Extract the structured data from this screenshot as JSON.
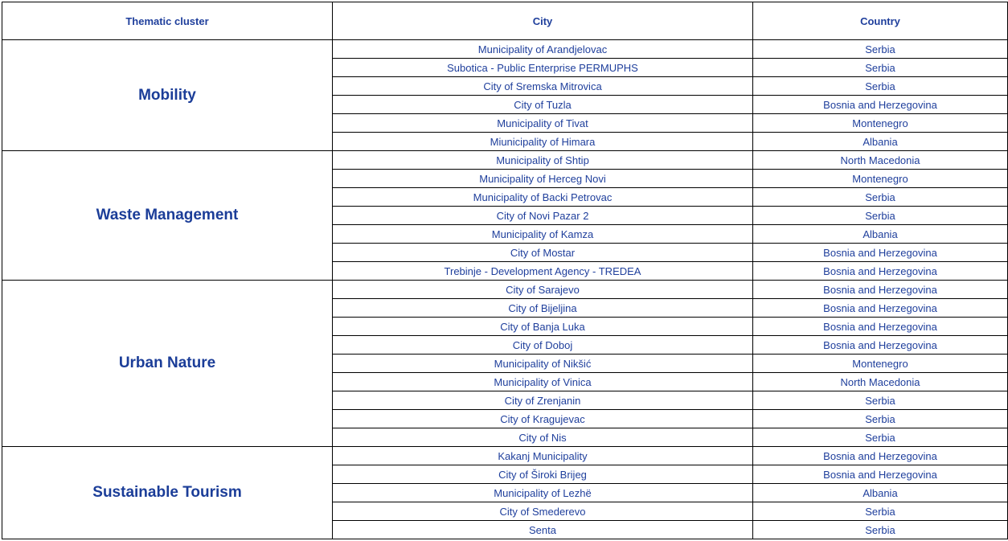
{
  "headers": {
    "cluster": "Thematic cluster",
    "city": "City",
    "country": "Country"
  },
  "text_color": "#1f3f9c",
  "clusters": [
    {
      "name": "Mobility",
      "rows": [
        {
          "city": "Municipality of Arandjelovac",
          "country": "Serbia"
        },
        {
          "city": "Subotica - Public Enterprise PERMUPHS",
          "country": "Serbia"
        },
        {
          "city": "City of Sremska Mitrovica",
          "country": "Serbia"
        },
        {
          "city": "City of Tuzla",
          "country": "Bosnia and Herzegovina"
        },
        {
          "city": "Municipality of Tivat",
          "country": "Montenegro"
        },
        {
          "city": "Miunicipality of Himara",
          "country": "Albania"
        }
      ]
    },
    {
      "name": "Waste Management",
      "rows": [
        {
          "city": "Municipality of Shtip",
          "country": "North Macedonia"
        },
        {
          "city": "Municipality of Herceg Novi",
          "country": "Montenegro"
        },
        {
          "city": "Municipality of Backi Petrovac",
          "country": "Serbia"
        },
        {
          "city": "City of Novi Pazar 2",
          "country": "Serbia"
        },
        {
          "city": "Municipality of Kamza",
          "country": "Albania"
        },
        {
          "city": "City of Mostar",
          "country": "Bosnia and Herzegovina"
        },
        {
          "city": "Trebinje - Development Agency - TREDEA",
          "country": "Bosnia and Herzegovina"
        }
      ]
    },
    {
      "name": "Urban Nature",
      "rows": [
        {
          "city": "City of Sarajevo",
          "country": "Bosnia and Herzegovina"
        },
        {
          "city": "City of Bijeljina",
          "country": "Bosnia and Herzegovina"
        },
        {
          "city": "City of Banja Luka",
          "country": "Bosnia and Herzegovina"
        },
        {
          "city": "City of Doboj",
          "country": "Bosnia and Herzegovina"
        },
        {
          "city": "Municipality of Nikšić",
          "country": "Montenegro"
        },
        {
          "city": "Municipality of Vinica",
          "country": "North Macedonia"
        },
        {
          "city": "City of Zrenjanin",
          "country": "Serbia"
        },
        {
          "city": "City of Kragujevac",
          "country": "Serbia"
        },
        {
          "city": "City of Nis",
          "country": "Serbia"
        }
      ]
    },
    {
      "name": "Sustainable Tourism",
      "rows": [
        {
          "city": "Kakanj Municipality",
          "country": "Bosnia and Herzegovina"
        },
        {
          "city": "City of Široki Brijeg",
          "country": "Bosnia and Herzegovina"
        },
        {
          "city": "Municipality of Lezhë",
          "country": "Albania"
        },
        {
          "city": "City of Smederevo",
          "country": "Serbia"
        },
        {
          "city": "Senta",
          "country": "Serbia"
        }
      ]
    }
  ]
}
